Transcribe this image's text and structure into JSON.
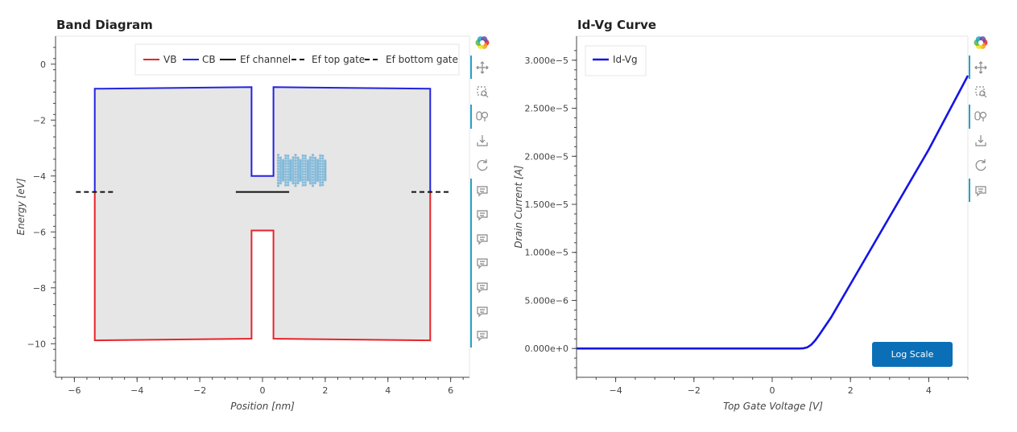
{
  "colors": {
    "vb": "#e8232a",
    "cb": "#2323e0",
    "ef": "#111111",
    "fill": "#e6e6e6",
    "scatter": "#6aaed6",
    "idvg": "#1414e6",
    "toolbar_accent": "#26a2c4",
    "button": "#0a6fb6"
  },
  "band": {
    "chart_data": {
      "type": "line",
      "title": "Band Diagram",
      "xlabel": "Position [nm]",
      "ylabel": "Energy [eV]",
      "xlim": [
        -6.6,
        6.6
      ],
      "ylim": [
        -11.2,
        1.0
      ],
      "xticks": [
        -6,
        -4,
        -2,
        0,
        2,
        4,
        6
      ],
      "xtick_labels": [
        "−6",
        "−4",
        "−2",
        "0",
        "2",
        "4",
        "6"
      ],
      "yticks": [
        0,
        -2,
        -4,
        -6,
        -8,
        -10
      ],
      "ytick_labels": [
        "0",
        "−2",
        "−4",
        "−6",
        "−8",
        "−10"
      ],
      "legend": [
        {
          "label": "VB",
          "style": "solid",
          "color_key": "vb"
        },
        {
          "label": "CB",
          "style": "solid",
          "color_key": "cb"
        },
        {
          "label": "Ef channel",
          "style": "solid",
          "color_key": "ef"
        },
        {
          "label": "Ef top gate",
          "style": "dashed",
          "color_key": "ef"
        },
        {
          "label": "Ef bottom gate",
          "style": "dashed",
          "color_key": "ef"
        }
      ],
      "series": [
        {
          "name": "CB",
          "x": [
            -5.35,
            -5.35,
            -0.35,
            -0.35,
            0.35,
            0.35,
            5.35,
            5.35
          ],
          "y": [
            -4.55,
            -0.88,
            -0.82,
            -4.0,
            -4.0,
            -0.82,
            -0.88,
            -4.55
          ]
        },
        {
          "name": "VB",
          "x": [
            -5.35,
            -5.35,
            -0.35,
            -0.35,
            0.35,
            0.35,
            5.35,
            5.35
          ],
          "y": [
            -4.55,
            -9.88,
            -9.82,
            -5.95,
            -5.95,
            -9.82,
            -9.88,
            -4.55
          ]
        },
        {
          "name": "Ef channel",
          "x": [
            -0.85,
            0.85
          ],
          "y": [
            -4.57,
            -4.57
          ]
        },
        {
          "name": "Ef top gate",
          "x": [
            -5.95,
            -4.75
          ],
          "y": [
            -4.57,
            -4.57
          ]
        },
        {
          "name": "Ef bottom gate",
          "x": [
            4.75,
            5.95
          ],
          "y": [
            -4.57,
            -4.57
          ]
        }
      ],
      "scatter": {
        "x_range": [
          0.5,
          2.0
        ],
        "y_range": [
          -4.35,
          -3.25
        ],
        "cols": 20,
        "rows": 12
      }
    }
  },
  "idvg": {
    "chart_data": {
      "type": "line",
      "title": "Id-Vg Curve",
      "xlabel": "Top Gate Voltage [V]",
      "ylabel": "Drain Current [A]",
      "xlim": [
        -5,
        5
      ],
      "ylim": [
        -3e-06,
        3.25e-05
      ],
      "xticks": [
        -4,
        -2,
        0,
        2,
        4
      ],
      "xtick_labels": [
        "−4",
        "−2",
        "0",
        "2",
        "4"
      ],
      "yticks": [
        0,
        5e-06,
        1e-05,
        1.5e-05,
        2e-05,
        2.5e-05,
        3e-05
      ],
      "ytick_labels": [
        "0.000e+0",
        "5.000e−6",
        "1.000e−5",
        "1.500e−5",
        "2.000e−5",
        "2.500e−5",
        "3.000e−5"
      ],
      "legend": [
        {
          "label": "Id-Vg",
          "color_key": "idvg"
        }
      ],
      "series": [
        {
          "name": "Id-Vg",
          "x": [
            -5,
            0.7,
            0.8,
            0.9,
            1.0,
            1.1,
            1.2,
            1.5,
            2,
            3,
            4,
            5
          ],
          "y": [
            0,
            0,
            2e-08,
            1.2e-07,
            4e-07,
            8.5e-07,
            1.4e-06,
            3.2e-06,
            6.7e-06,
            1.37e-05,
            2.07e-05,
            2.84e-05
          ]
        }
      ]
    },
    "log_scale_button": "Log Scale"
  },
  "toolbar": {
    "tools": [
      "bokeh-logo-icon",
      "pan-icon",
      "box-zoom-icon",
      "wheel-zoom-icon",
      "save-icon",
      "reset-icon",
      "hover-icon"
    ]
  }
}
